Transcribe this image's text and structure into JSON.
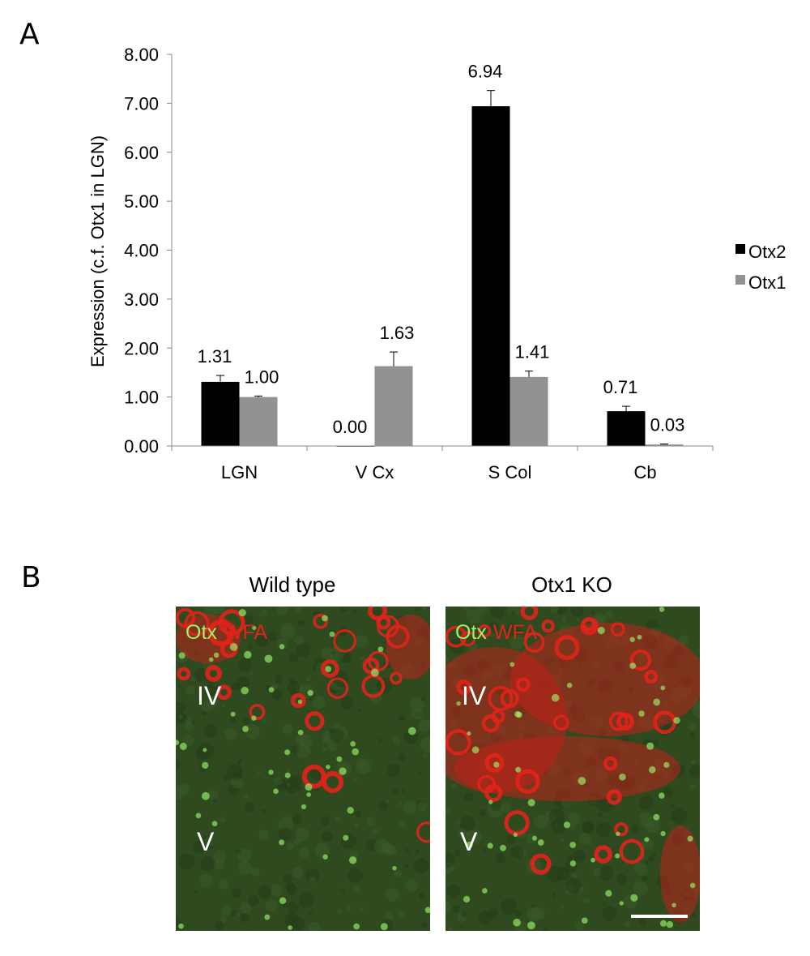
{
  "panels": {
    "a_label": "A",
    "b_label": "B"
  },
  "chart_data": {
    "type": "bar",
    "ylabel": "Expression (c.f. Otx1 in LGN)",
    "ylim": [
      0,
      8
    ],
    "yticks": [
      "0.00",
      "1.00",
      "2.00",
      "3.00",
      "4.00",
      "5.00",
      "6.00",
      "7.00",
      "8.00"
    ],
    "categories": [
      "LGN",
      "V Cx",
      "S Col",
      "Cb"
    ],
    "legend_position": "right",
    "series": [
      {
        "name": "Otx2",
        "color": "#000000",
        "values": [
          1.31,
          0.0,
          6.94,
          0.71
        ],
        "labels": [
          "1.31",
          "0.00",
          "6.94",
          "0.71"
        ],
        "errors": [
          0.13,
          0.0,
          0.32,
          0.1
        ]
      },
      {
        "name": "Otx1",
        "color": "#929292",
        "values": [
          1.0,
          1.63,
          1.41,
          0.03
        ],
        "labels": [
          "1.00",
          "1.63",
          "1.41",
          "0.03"
        ],
        "errors": [
          0.02,
          0.29,
          0.12,
          0.01
        ]
      }
    ]
  },
  "images": [
    {
      "title": "Wild type",
      "stain_green": "Otx",
      "stain_red": "WFA",
      "layer_top": "IV",
      "layer_bottom": "V"
    },
    {
      "title": "Otx1 KO",
      "stain_green": "Otx",
      "stain_red": "WFA",
      "layer_top": "IV",
      "layer_bottom": "V"
    }
  ],
  "colors": {
    "otx_green": "#9bf36a",
    "wfa_red": "#e3221b",
    "tissue_bg": "#2f4a1f"
  }
}
